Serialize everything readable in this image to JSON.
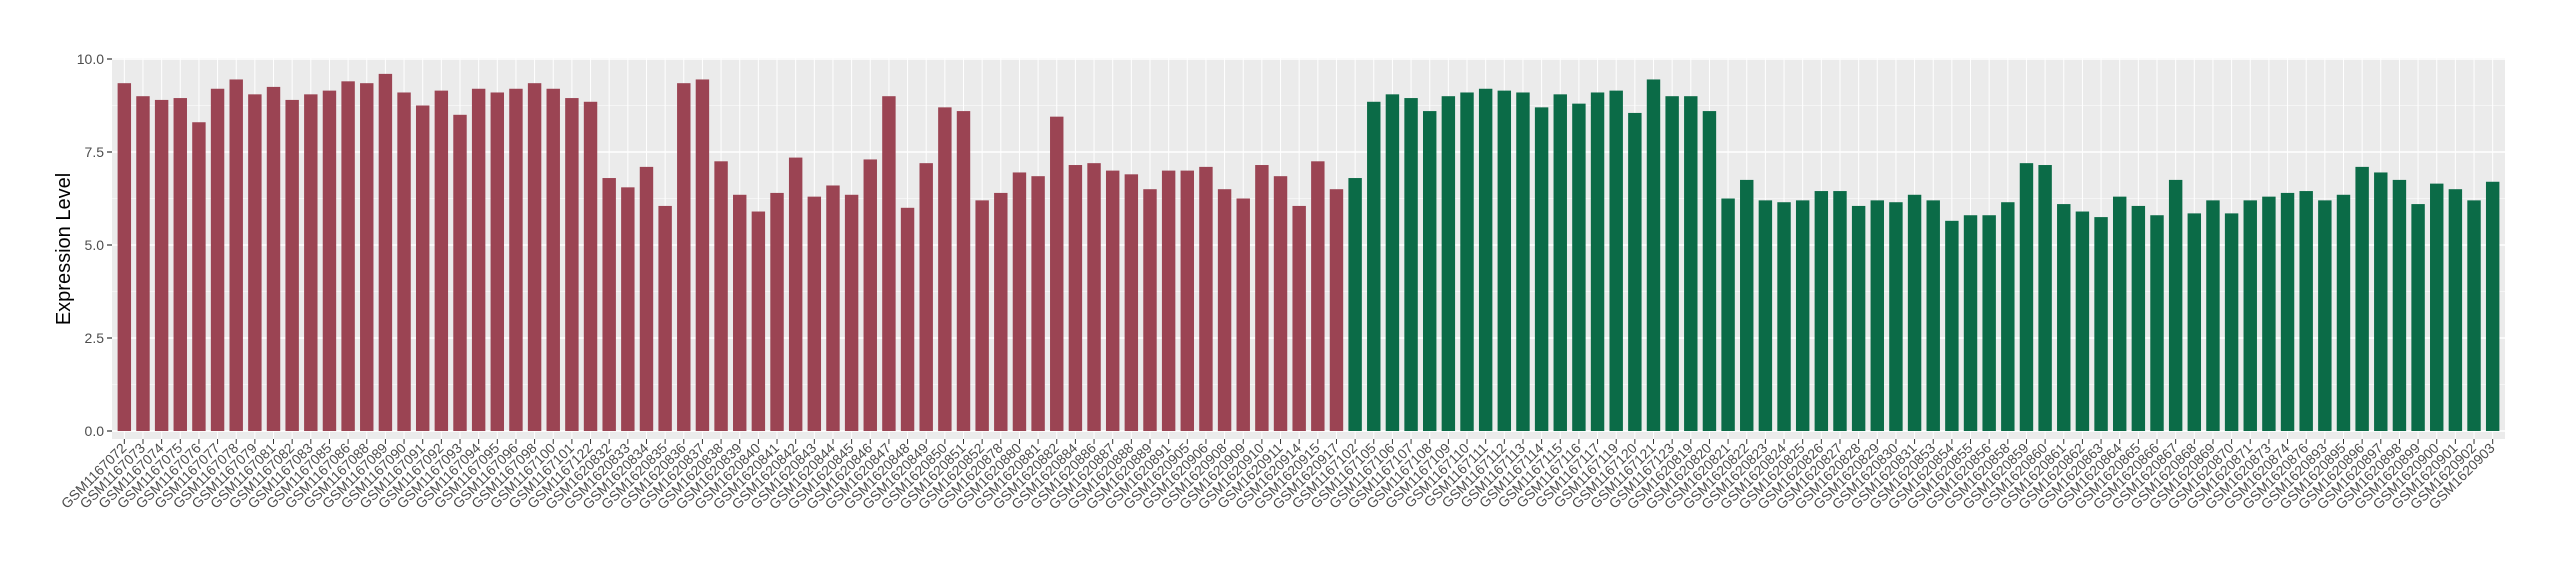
{
  "chart_data": {
    "type": "bar",
    "title": "",
    "xlabel": "",
    "ylabel": "Expression Level",
    "ylim": [
      0,
      10
    ],
    "yticks": [
      0.0,
      2.5,
      5.0,
      7.5,
      10.0
    ],
    "ytick_labels": [
      "0.0",
      "2.5",
      "5.0",
      "7.5",
      "10.0"
    ],
    "grid": true,
    "legend": "none",
    "colors": {
      "group1": "#9b4453",
      "group2": "#0b6b47",
      "panel": "#ebebeb",
      "grid": "#ffffff"
    },
    "categories": [
      "GSM1167072",
      "GSM1167073",
      "GSM1167074",
      "GSM1167075",
      "GSM1167076",
      "GSM1167077",
      "GSM1167078",
      "GSM1167079",
      "GSM1167081",
      "GSM1167082",
      "GSM1167083",
      "GSM1167085",
      "GSM1167086",
      "GSM1167088",
      "GSM1167089",
      "GSM1167090",
      "GSM1167091",
      "GSM1167092",
      "GSM1167093",
      "GSM1167094",
      "GSM1167095",
      "GSM1167096",
      "GSM1167098",
      "GSM1167100",
      "GSM1167101",
      "GSM1167122",
      "GSM1620832",
      "GSM1620833",
      "GSM1620834",
      "GSM1620835",
      "GSM1620836",
      "GSM1620837",
      "GSM1620838",
      "GSM1620839",
      "GSM1620840",
      "GSM1620841",
      "GSM1620842",
      "GSM1620843",
      "GSM1620844",
      "GSM1620845",
      "GSM1620846",
      "GSM1620847",
      "GSM1620848",
      "GSM1620849",
      "GSM1620850",
      "GSM1620851",
      "GSM1620852",
      "GSM1620878",
      "GSM1620880",
      "GSM1620881",
      "GSM1620882",
      "GSM1620884",
      "GSM1620886",
      "GSM1620887",
      "GSM1620888",
      "GSM1620889",
      "GSM1620891",
      "GSM1620905",
      "GSM1620906",
      "GSM1620908",
      "GSM1620909",
      "GSM1620910",
      "GSM1620911",
      "GSM1620914",
      "GSM1620915",
      "GSM1620917",
      "GSM1167102",
      "GSM1167105",
      "GSM1167106",
      "GSM1167107",
      "GSM1167108",
      "GSM1167109",
      "GSM1167110",
      "GSM1167111",
      "GSM1167112",
      "GSM1167113",
      "GSM1167114",
      "GSM1167115",
      "GSM1167116",
      "GSM1167117",
      "GSM1167119",
      "GSM1167120",
      "GSM1167121",
      "GSM1167123",
      "GSM1620819",
      "GSM1620820",
      "GSM1620821",
      "GSM1620822",
      "GSM1620823",
      "GSM1620824",
      "GSM1620825",
      "GSM1620826",
      "GSM1620827",
      "GSM1620828",
      "GSM1620829",
      "GSM1620830",
      "GSM1620831",
      "GSM1620853",
      "GSM1620854",
      "GSM1620855",
      "GSM1620856",
      "GSM1620858",
      "GSM1620859",
      "GSM1620860",
      "GSM1620861",
      "GSM1620862",
      "GSM1620863",
      "GSM1620864",
      "GSM1620865",
      "GSM1620866",
      "GSM1620867",
      "GSM1620868",
      "GSM1620869",
      "GSM1620870",
      "GSM1620871",
      "GSM1620873",
      "GSM1620874",
      "GSM1620876",
      "GSM1620893",
      "GSM1620895",
      "GSM1620896",
      "GSM1620897",
      "GSM1620898",
      "GSM1620899",
      "GSM1620900",
      "GSM1620901",
      "GSM1620902",
      "GSM1620903"
    ],
    "values": [
      9.35,
      9.0,
      8.9,
      8.95,
      8.3,
      9.2,
      9.45,
      9.05,
      9.25,
      8.9,
      9.05,
      9.15,
      9.4,
      9.35,
      9.6,
      9.1,
      8.75,
      9.15,
      8.5,
      9.2,
      9.1,
      9.2,
      9.35,
      9.2,
      8.95,
      8.85,
      6.8,
      6.55,
      7.1,
      6.05,
      9.35,
      9.45,
      7.25,
      6.35,
      5.9,
      6.4,
      7.35,
      6.3,
      6.6,
      6.35,
      7.3,
      9.0,
      6.0,
      7.2,
      8.7,
      8.6,
      6.2,
      6.4,
      6.95,
      6.85,
      8.45,
      7.15,
      7.2,
      7.0,
      6.9,
      6.5,
      7.0,
      7.0,
      7.1,
      6.5,
      6.25,
      7.15,
      6.85,
      6.05,
      7.25,
      6.5,
      6.8,
      8.85,
      9.05,
      8.95,
      8.6,
      9.0,
      9.1,
      9.2,
      9.15,
      9.1,
      8.7,
      9.05,
      8.8,
      9.1,
      9.15,
      8.55,
      9.45,
      9.0,
      9.0,
      8.6,
      6.25,
      6.75,
      6.2,
      6.15,
      6.2,
      6.45,
      6.45,
      6.05,
      6.2,
      6.15,
      6.35,
      6.2,
      5.65,
      5.8,
      5.8,
      6.15,
      7.2,
      7.15,
      6.1,
      5.9,
      5.75,
      6.3,
      6.05,
      5.8,
      6.75,
      5.85,
      6.2,
      5.85,
      6.2,
      6.3,
      6.4,
      6.45,
      6.2,
      6.35,
      7.1,
      6.95,
      6.75,
      6.1,
      6.65,
      6.5,
      6.2,
      6.7
    ],
    "group_split_index": 66
  }
}
